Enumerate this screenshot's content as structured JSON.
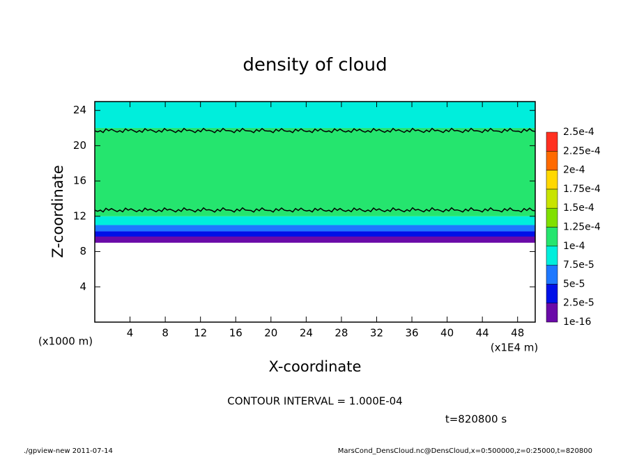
{
  "chart_data": {
    "type": "contour",
    "title": "density of cloud",
    "xlabel": "X-coordinate",
    "ylabel": "Z-coordinate",
    "x_unit": "(x1E4 m)",
    "y_unit": "(x1000 m)",
    "xlim": [
      0,
      50
    ],
    "ylim": [
      0,
      25
    ],
    "xticks": [
      4,
      8,
      12,
      16,
      20,
      24,
      28,
      32,
      36,
      40,
      44,
      48
    ],
    "yticks": [
      4,
      8,
      12,
      16,
      20,
      24
    ],
    "z_edges": [
      9,
      9.7,
      10.3,
      11,
      12,
      22,
      25
    ],
    "density": [
      1e-05,
      3.5e-05,
      6e-05,
      9e-05,
      0.00011,
      9e-05
    ],
    "contour_z": [
      12.7,
      21.7
    ],
    "colorbar": {
      "levels": [
        {
          "value": 1e-16,
          "label": "1e-16"
        },
        {
          "value": 2.5e-05,
          "label": "2.5e-5"
        },
        {
          "value": 5e-05,
          "label": "5e-5"
        },
        {
          "value": 7.5e-05,
          "label": "7.5e-5"
        },
        {
          "value": 0.0001,
          "label": "1e-4"
        },
        {
          "value": 0.000125,
          "label": "1.25e-4"
        },
        {
          "value": 0.00015,
          "label": "1.5e-4"
        },
        {
          "value": 0.000175,
          "label": "1.75e-4"
        },
        {
          "value": 0.0002,
          "label": "2e-4"
        },
        {
          "value": 0.000225,
          "label": "2.25e-4"
        },
        {
          "value": 0.00025,
          "label": "2.5e-4"
        }
      ],
      "colors": [
        "#6a0aa8",
        "#0010e8",
        "#1e78ff",
        "#00eedc",
        "#25e56e",
        "#80e000",
        "#c8e400",
        "#ffd800",
        "#ff6a00",
        "#ff3020"
      ]
    },
    "contour_interval": "CONTOUR INTERVAL = 1.000E-04",
    "time_label": "t=820800 s",
    "footer_left": "./gpview-new  2011-07-14",
    "footer_right": "MarsCond_DensCloud.nc@DensCloud,x=0:500000,z=0:25000,t=820800"
  }
}
